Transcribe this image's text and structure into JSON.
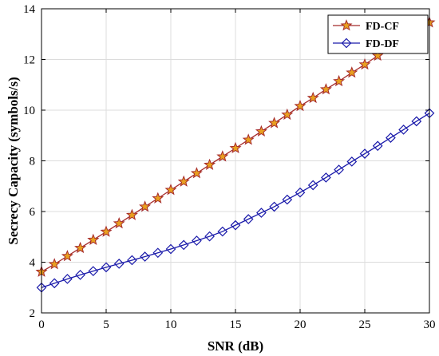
{
  "chart_data": {
    "type": "line",
    "xlabel": "SNR (dB)",
    "ylabel": "Secrecy Capacity (symbols/s)",
    "xlim": [
      0,
      30
    ],
    "ylim": [
      2,
      14
    ],
    "xticks": [
      0,
      5,
      10,
      15,
      20,
      25,
      30
    ],
    "yticks": [
      2,
      4,
      6,
      8,
      10,
      12,
      14
    ],
    "grid": true,
    "legend_position": "top-right",
    "x": [
      0,
      1,
      2,
      3,
      4,
      5,
      6,
      7,
      8,
      9,
      10,
      11,
      12,
      13,
      14,
      15,
      16,
      17,
      18,
      19,
      20,
      21,
      22,
      23,
      24,
      25,
      26,
      27,
      28,
      29,
      30
    ],
    "series": [
      {
        "name": "FD-CF",
        "color": "#a52a2a",
        "marker": "star",
        "marker_fill": "#e8a020",
        "values": [
          3.62,
          3.92,
          4.24,
          4.56,
          4.88,
          5.2,
          5.53,
          5.86,
          6.19,
          6.52,
          6.85,
          7.18,
          7.51,
          7.84,
          8.17,
          8.5,
          8.83,
          9.16,
          9.49,
          9.82,
          10.16,
          10.48,
          10.82,
          11.14,
          11.48,
          11.8,
          12.15,
          12.48,
          12.8,
          13.13,
          13.46
        ]
      },
      {
        "name": "FD-DF",
        "color": "#1a1aaa",
        "marker": "diamond",
        "marker_fill": "none",
        "values": [
          3.0,
          3.17,
          3.34,
          3.5,
          3.65,
          3.8,
          3.94,
          4.08,
          4.22,
          4.37,
          4.52,
          4.68,
          4.85,
          5.02,
          5.21,
          5.46,
          5.7,
          5.95,
          6.19,
          6.47,
          6.75,
          7.04,
          7.34,
          7.65,
          7.97,
          8.28,
          8.59,
          8.91,
          9.23,
          9.56,
          9.88
        ]
      }
    ]
  }
}
